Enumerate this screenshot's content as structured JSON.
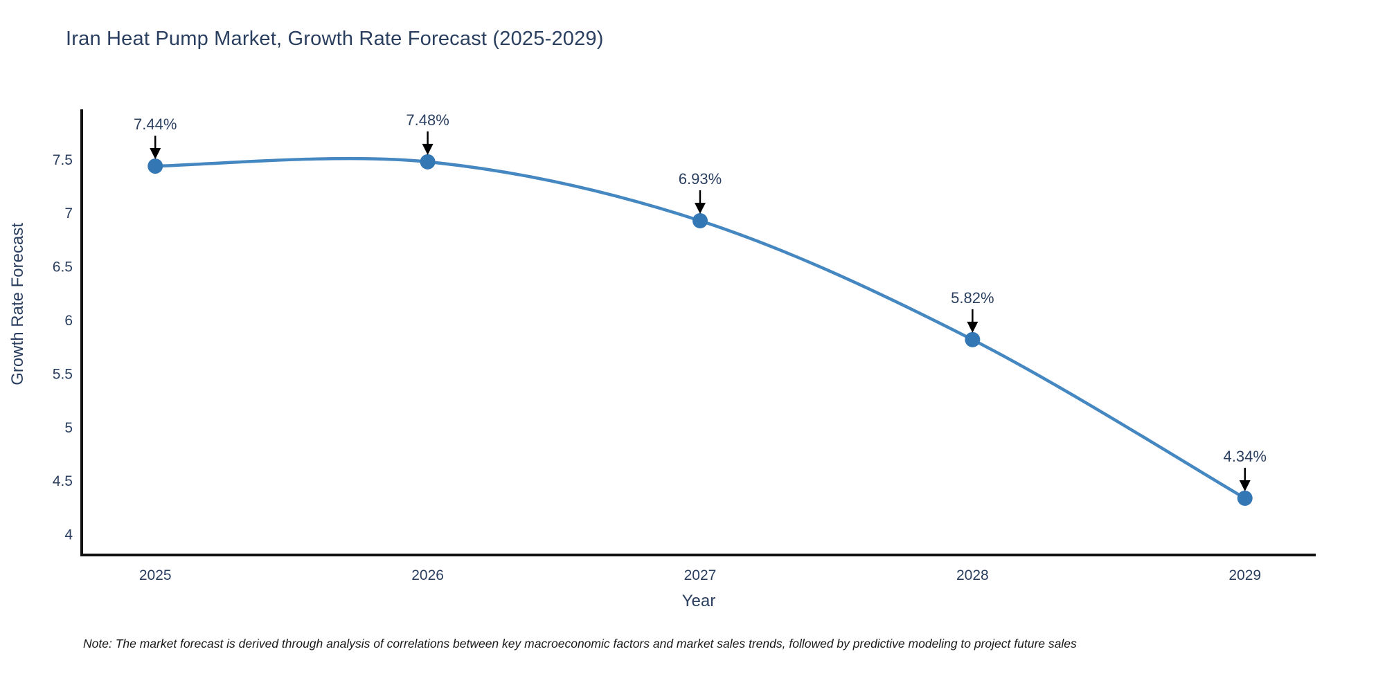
{
  "title": "Iran Heat Pump Market, Growth Rate Forecast (2025-2029)",
  "note": "Note: The market forecast is derived through analysis of correlations between key macroeconomic factors and market sales trends, followed by predictive modeling to project future sales",
  "chart_data": {
    "type": "line",
    "title": "Iran Heat Pump Market, Growth Rate Forecast (2025-2029)",
    "xlabel": "Year",
    "ylabel": "Growth Rate Forecast",
    "x": [
      2025,
      2026,
      2027,
      2028,
      2029
    ],
    "series": [
      {
        "name": "Growth Rate Forecast",
        "values": [
          7.44,
          7.48,
          6.93,
          5.82,
          4.34
        ]
      }
    ],
    "point_labels": [
      "7.44%",
      "7.48%",
      "6.93%",
      "5.82%",
      "4.34%"
    ],
    "y_ticks": [
      7.5,
      7,
      6.5,
      6,
      5.5,
      5,
      4.5,
      4
    ],
    "ylim": [
      3.81,
      7.97
    ],
    "xlim": [
      2024.73,
      2029.26
    ],
    "grid": false,
    "legend": "none",
    "smooth": true,
    "colors": {
      "line": "#4587c0",
      "marker": "#3377b4",
      "axis": "#111111",
      "text": "#2a3f5f",
      "annotation_arrow": "#000000"
    }
  }
}
